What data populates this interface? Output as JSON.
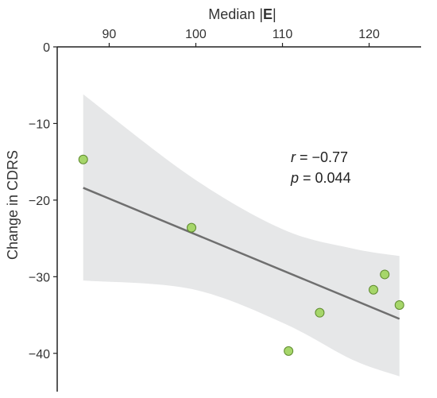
{
  "chart_data": {
    "type": "scatter",
    "xlabel_prefix": "Median |",
    "xlabel_bold": "E",
    "xlabel_suffix": "|",
    "ylabel": "Change in CDRS",
    "x_axis_position": "top",
    "xlim": [
      84,
      126
    ],
    "ylim": [
      -45,
      0
    ],
    "x_ticks": [
      90,
      100,
      110,
      120
    ],
    "y_ticks": [
      0,
      -10,
      -20,
      -30,
      -40
    ],
    "x_tick_labels": [
      "90",
      "100",
      "110",
      "120"
    ],
    "y_tick_labels": [
      "0",
      "−10",
      "−20",
      "−30",
      "−40"
    ],
    "points": [
      {
        "x": 87.0,
        "y": -14.7
      },
      {
        "x": 99.5,
        "y": -23.6
      },
      {
        "x": 110.7,
        "y": -39.7
      },
      {
        "x": 114.3,
        "y": -34.7
      },
      {
        "x": 120.5,
        "y": -31.7
      },
      {
        "x": 121.8,
        "y": -29.7
      },
      {
        "x": 123.5,
        "y": -33.7
      }
    ],
    "regression": {
      "x": [
        87.0,
        123.5
      ],
      "y": [
        -18.4,
        -35.5
      ]
    },
    "confidence_band": {
      "x": [
        87.0,
        99.5,
        110,
        118,
        123.5
      ],
      "upper": [
        -6.2,
        -17.0,
        -23.8,
        -26.3,
        -27.3
      ],
      "lower": [
        -30.5,
        -31.6,
        -36.0,
        -40.8,
        -43.0
      ]
    },
    "annotation": {
      "r_symbol": "r",
      "r_value": " = −0.77",
      "p_symbol": "p",
      "p_value": " = 0.044"
    },
    "colors": {
      "point_fill": "#a6d66a",
      "point_stroke": "#5e8a2e",
      "line": "#6f6f6f",
      "band": "#e6e7e8",
      "axis": "#222222"
    }
  }
}
